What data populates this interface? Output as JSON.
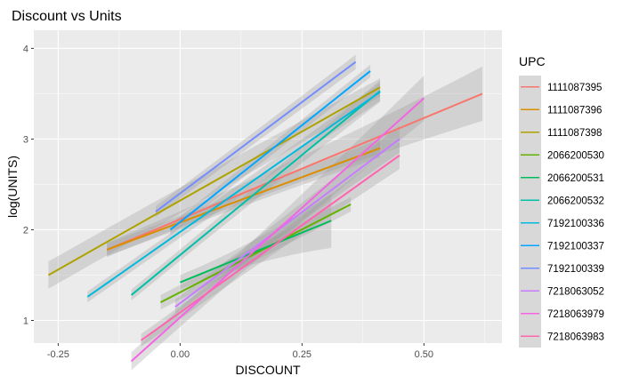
{
  "chart_data": {
    "type": "line",
    "title": "Discount vs Units",
    "xlabel": "DISCOUNT",
    "ylabel": "log(UNITS)",
    "xlim": [
      -0.3,
      0.66
    ],
    "ylim": [
      0.75,
      4.2
    ],
    "x_ticks": [
      -0.25,
      0.0,
      0.25,
      0.5
    ],
    "x_tick_labels": [
      "-0.25",
      "0.00",
      "0.25",
      "0.50"
    ],
    "y_ticks": [
      1,
      2,
      3,
      4
    ],
    "y_tick_labels": [
      "1",
      "2",
      "3",
      "4"
    ],
    "grid": true,
    "legend": {
      "title": "UPC",
      "position": "right"
    },
    "series": [
      {
        "name": "1111087395",
        "color": "#F8766D",
        "x": [
          -0.15,
          0.62
        ],
        "y": [
          1.78,
          3.5
        ],
        "ci": [
          0.08,
          0.3
        ]
      },
      {
        "name": "1111087396",
        "color": "#DB8E00",
        "x": [
          -0.15,
          0.41
        ],
        "y": [
          1.78,
          2.9
        ],
        "ci": [
          0.07,
          0.1
        ]
      },
      {
        "name": "1111087398",
        "color": "#AEA200",
        "x": [
          -0.27,
          0.41
        ],
        "y": [
          1.5,
          3.57
        ],
        "ci": [
          0.15,
          0.1
        ]
      },
      {
        "name": "2066200530",
        "color": "#64B200",
        "x": [
          -0.04,
          0.35
        ],
        "y": [
          1.2,
          2.28
        ],
        "ci": [
          0.08,
          0.08
        ]
      },
      {
        "name": "2066200531",
        "color": "#00BD5C",
        "x": [
          0.0,
          0.31
        ],
        "y": [
          1.42,
          2.1
        ],
        "ci": [
          0.08,
          0.3
        ]
      },
      {
        "name": "2066200532",
        "color": "#00C1A7",
        "x": [
          -0.1,
          0.41
        ],
        "y": [
          1.28,
          3.53
        ],
        "ci": [
          0.06,
          0.12
        ]
      },
      {
        "name": "7192100336",
        "color": "#00BADE",
        "x": [
          -0.19,
          0.41
        ],
        "y": [
          1.26,
          3.52
        ],
        "ci": [
          0.06,
          0.1
        ]
      },
      {
        "name": "7192100337",
        "color": "#00A6FF",
        "x": [
          -0.02,
          0.39
        ],
        "y": [
          2.0,
          3.75
        ],
        "ci": [
          0.06,
          0.07
        ]
      },
      {
        "name": "7192100339",
        "color": "#748DFF",
        "x": [
          -0.05,
          0.36
        ],
        "y": [
          2.2,
          3.85
        ],
        "ci": [
          0.06,
          0.08
        ]
      },
      {
        "name": "7218063052",
        "color": "#C77CFF",
        "x": [
          -0.01,
          0.45
        ],
        "y": [
          1.15,
          3.0
        ],
        "ci": [
          0.08,
          0.15
        ]
      },
      {
        "name": "7218063979",
        "color": "#F564E3",
        "x": [
          -0.1,
          0.5
        ],
        "y": [
          0.55,
          3.45
        ],
        "ci": [
          0.1,
          0.25
        ]
      },
      {
        "name": "7218063983",
        "color": "#FF64B0",
        "x": [
          -0.08,
          0.45
        ],
        "y": [
          0.78,
          2.82
        ],
        "ci": [
          0.07,
          0.15
        ]
      }
    ]
  },
  "colors": {
    "panel_background": "#EBEBEB",
    "grid_major": "#FFFFFF",
    "ribbon_fill": "#999999"
  }
}
